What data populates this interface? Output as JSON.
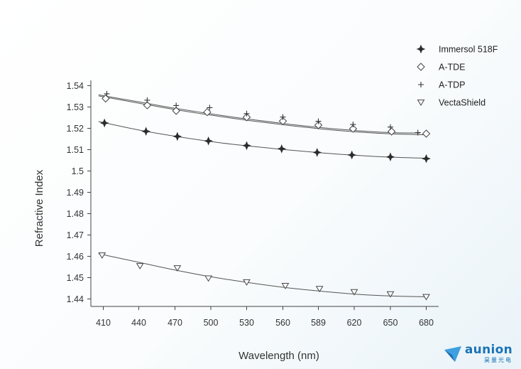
{
  "chart_data": {
    "type": "scatter",
    "xlabel": "Wavelength (nm)",
    "ylabel": "Refractive Index",
    "x_ticks": [
      "410",
      "440",
      "470",
      "500",
      "530",
      "560",
      "589",
      "620",
      "650",
      "680"
    ],
    "y_ticks": [
      "1.54",
      "1.53",
      "1.52",
      "1.51",
      "1.5",
      "1.49",
      "1.48",
      "1.47",
      "1.46",
      "1.45",
      "1.44"
    ],
    "ylim": [
      1.437,
      1.544
    ],
    "grid": false,
    "legend": "top-right",
    "series": [
      {
        "name": "Immersol 518F",
        "marker": "filled-star",
        "x": [
          411,
          446,
          472,
          498,
          530,
          559,
          588,
          618,
          650,
          680
        ],
        "y": [
          1.5225,
          1.5186,
          1.5162,
          1.5141,
          1.5119,
          1.5104,
          1.5087,
          1.5075,
          1.5066,
          1.5058
        ],
        "fit": [
          [
            406,
            1.5232
          ],
          [
            440,
            1.5192
          ],
          [
            470,
            1.5163
          ],
          [
            500,
            1.5138
          ],
          [
            530,
            1.5118
          ],
          [
            560,
            1.5101
          ],
          [
            590,
            1.5086
          ],
          [
            620,
            1.5074
          ],
          [
            650,
            1.5065
          ],
          [
            680,
            1.506
          ]
        ]
      },
      {
        "name": "A-TDE",
        "marker": "open-diamond",
        "x": [
          412,
          447,
          471,
          497,
          530,
          560,
          589,
          619,
          651,
          680
        ],
        "y": [
          1.534,
          1.5308,
          1.5282,
          1.5276,
          1.5252,
          1.5234,
          1.5215,
          1.5198,
          1.5185,
          1.5175
        ],
        "fit": [
          [
            406,
            1.5352
          ],
          [
            440,
            1.5318
          ],
          [
            470,
            1.5288
          ],
          [
            500,
            1.5262
          ],
          [
            530,
            1.5238
          ],
          [
            560,
            1.5217
          ],
          [
            590,
            1.5198
          ],
          [
            620,
            1.5184
          ],
          [
            650,
            1.5174
          ],
          [
            678,
            1.517
          ]
        ]
      },
      {
        "name": "A-TDP",
        "marker": "plus",
        "x": [
          413,
          447,
          471,
          499,
          530,
          560,
          589,
          619,
          650,
          673
        ],
        "y": [
          1.5362,
          1.5332,
          1.5307,
          1.5297,
          1.5269,
          1.5253,
          1.5233,
          1.5218,
          1.5206,
          1.518
        ],
        "fit": [
          [
            406,
            1.5357
          ],
          [
            440,
            1.5324
          ],
          [
            470,
            1.5294
          ],
          [
            500,
            1.5268
          ],
          [
            530,
            1.5244
          ],
          [
            560,
            1.5223
          ],
          [
            590,
            1.5204
          ],
          [
            620,
            1.519
          ],
          [
            650,
            1.518
          ],
          [
            675,
            1.5178
          ]
        ]
      },
      {
        "name": "VectaShield",
        "marker": "open-triangle-down",
        "x": [
          409,
          441,
          472,
          498,
          530,
          562,
          590,
          620,
          650,
          680
        ],
        "y": [
          1.4605,
          1.4555,
          1.4545,
          1.4497,
          1.4479,
          1.4462,
          1.4448,
          1.4433,
          1.4423,
          1.441
        ],
        "fit": [
          [
            406,
            1.4612
          ],
          [
            440,
            1.4572
          ],
          [
            470,
            1.4536
          ],
          [
            500,
            1.4504
          ],
          [
            530,
            1.4478
          ],
          [
            560,
            1.4455
          ],
          [
            590,
            1.4437
          ],
          [
            620,
            1.4423
          ],
          [
            650,
            1.4414
          ],
          [
            680,
            1.441
          ]
        ]
      }
    ]
  },
  "colors": {
    "line": "#555555",
    "marker": "#333333",
    "axis": "#444444"
  },
  "logo": {
    "text": "aunion",
    "subtext": "昊量光电"
  }
}
